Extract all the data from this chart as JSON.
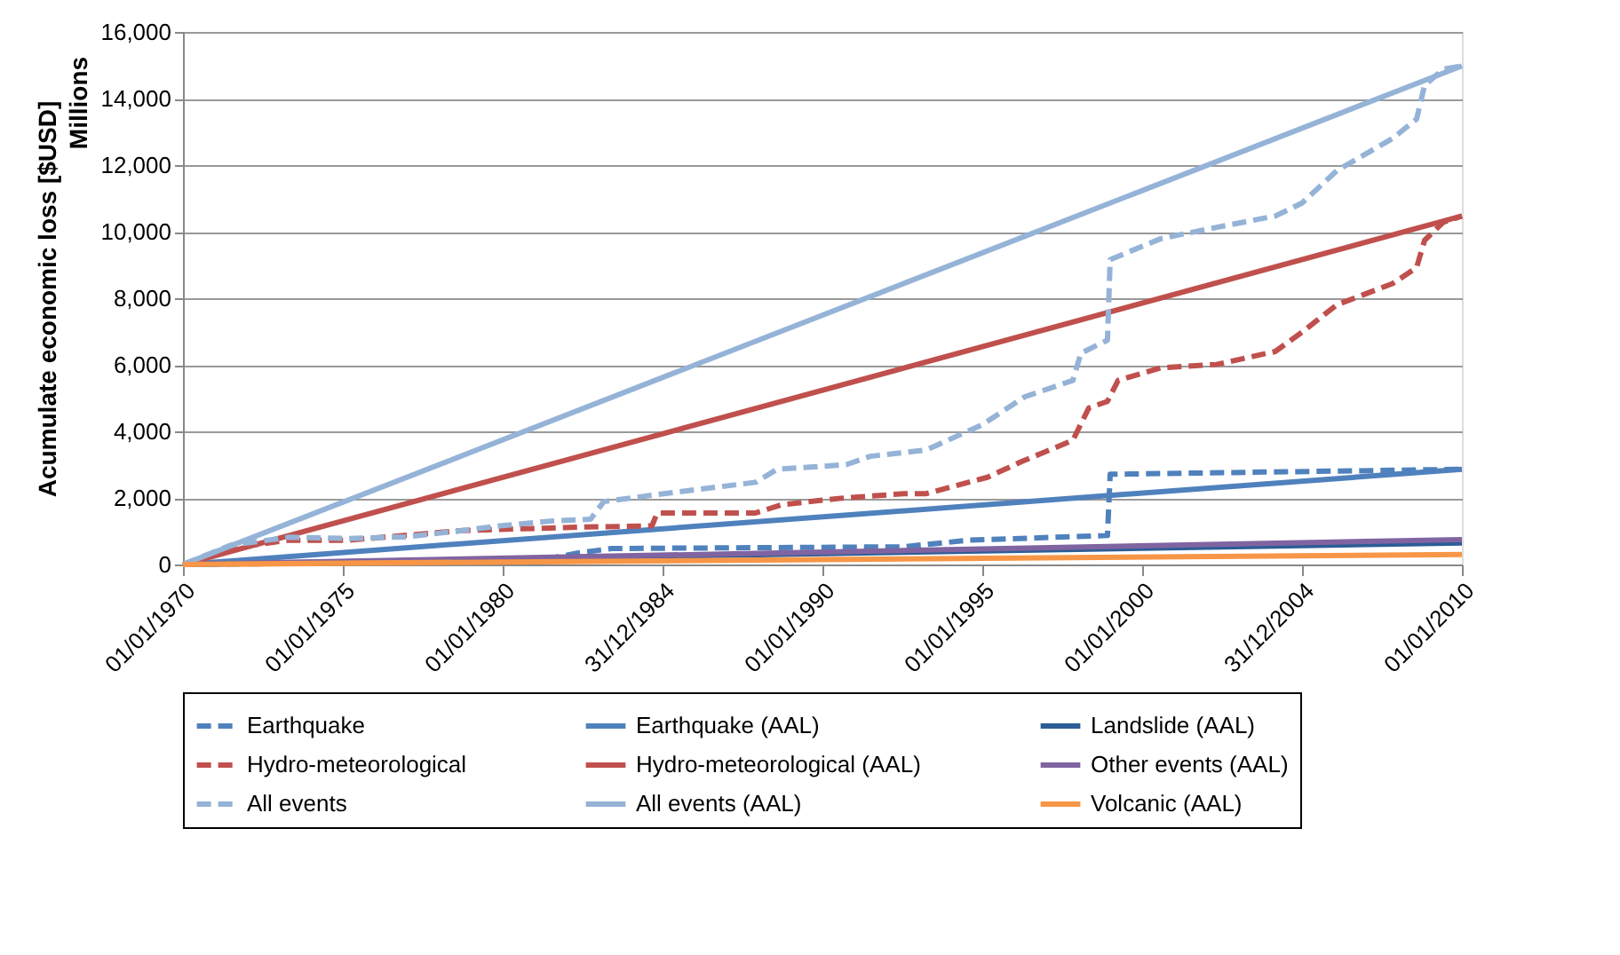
{
  "chart_data": {
    "type": "line",
    "ylabel": "Acumulate economic loss [$USD]",
    "annotations": [
      "Millions"
    ],
    "xlim": [
      "1970-01-01",
      "2010-01-01"
    ],
    "xticks": [
      {
        "value": "1970-01-01",
        "label": "01/01/1970"
      },
      {
        "value": "1975-01-01",
        "label": "01/01/1975"
      },
      {
        "value": "1980-01-01",
        "label": "01/01/1980"
      },
      {
        "value": "1984-12-31",
        "label": "31/12/1984"
      },
      {
        "value": "1990-01-01",
        "label": "01/01/1990"
      },
      {
        "value": "1995-01-01",
        "label": "01/01/1995"
      },
      {
        "value": "2000-01-01",
        "label": "01/01/2000"
      },
      {
        "value": "2004-12-31",
        "label": "31/12/2004"
      },
      {
        "value": "2010-01-01",
        "label": "01/01/2010"
      }
    ],
    "ylim": [
      0,
      16000
    ],
    "yticks": [
      0,
      {
        "value": 2000,
        "label": "2,000"
      },
      {
        "value": 4000,
        "label": "4,000"
      },
      {
        "value": 6000,
        "label": "6,000"
      },
      {
        "value": 8000,
        "label": "8,000"
      },
      {
        "value": 10000,
        "label": "10,000"
      },
      {
        "value": 12000,
        "label": "12,000"
      },
      {
        "value": 14000,
        "label": "14,000"
      },
      {
        "value": 16000,
        "label": "16,000"
      }
    ],
    "grid": "y",
    "legend": "bottom",
    "marker": "none",
    "series": [
      {
        "name": "Earthquake",
        "color": "#4f81bd",
        "line_style": "dashed",
        "x": [
          "1970-01",
          "1981-01",
          "1982-05",
          "1983-06",
          "1992-07",
          "1994-08",
          "1998-12",
          "1999-01",
          "2010-01"
        ],
        "values": [
          0,
          100,
          340,
          480,
          530,
          730,
          870,
          2710,
          2860
        ]
      },
      {
        "name": "Earthquake (AAL)",
        "color": "#4f81bd",
        "line_style": "solid",
        "x": [
          "1970-01",
          "2010-01"
        ],
        "values": [
          0,
          2860
        ]
      },
      {
        "name": "Landslide (AAL)",
        "color": "#2c5d96",
        "line_style": "solid",
        "x": [
          "1970-01",
          "2010-01"
        ],
        "values": [
          0,
          650
        ]
      },
      {
        "name": "Hydro-meteorological",
        "color": "#c0504d",
        "line_style": "dashed",
        "x": [
          "1970-01",
          "1971-07",
          "1973-05",
          "1975-03",
          "1978-10",
          "1982-05",
          "1984-09",
          "1984-11",
          "1987-12",
          "1988-10",
          "1990-08",
          "1992-08",
          "1993-04",
          "1995-03",
          "1996-04",
          "1997-11",
          "1998-05",
          "1998-12",
          "1999-04",
          "2000-08",
          "2002-05",
          "2004-03",
          "2005-01",
          "2006-02",
          "2007-11",
          "2008-08",
          "2008-11",
          "2009-06",
          "2010-01"
        ],
        "values": [
          0,
          500,
          730,
          730,
          1020,
          1120,
          1160,
          1550,
          1550,
          1800,
          1990,
          2130,
          2130,
          2620,
          3100,
          3730,
          4700,
          4900,
          5530,
          5910,
          6010,
          6400,
          6980,
          7800,
          8440,
          8920,
          9740,
          10280,
          10470
        ]
      },
      {
        "name": "Hydro-meteorological (AAL)",
        "color": "#c0504d",
        "line_style": "solid",
        "x": [
          "1970-01",
          "2010-01"
        ],
        "values": [
          0,
          10470
        ]
      },
      {
        "name": "Other events (AAL)",
        "color": "#8064a2",
        "line_style": "solid",
        "x": [
          "1970-01",
          "2010-01"
        ],
        "values": [
          0,
          750
        ]
      },
      {
        "name": "All events",
        "color": "#95b3d7",
        "line_style": "dashed",
        "x": [
          "1970-01",
          "1971-07",
          "1973-05",
          "1975-03",
          "1977-01",
          "1978-10",
          "1979-12",
          "1981-08",
          "1982-10",
          "1983-03",
          "1984-10",
          "1987-12",
          "1988-08",
          "1990-10",
          "1991-07",
          "1993-04",
          "1995-01",
          "1996-05",
          "1997-11",
          "1998-02",
          "1998-12",
          "1999-01",
          "2000-08",
          "2002-05",
          "2004-03",
          "2005-01",
          "2006-02",
          "2007-11",
          "2008-08",
          "2008-11",
          "2009-06",
          "2010-01"
        ],
        "values": [
          0,
          580,
          820,
          780,
          830,
          1020,
          1160,
          1310,
          1360,
          1890,
          2090,
          2470,
          2860,
          3000,
          3250,
          3440,
          4200,
          5040,
          5530,
          6350,
          6740,
          9160,
          9790,
          10130,
          10470,
          10860,
          11830,
          12800,
          13380,
          14400,
          14880,
          14980
        ]
      },
      {
        "name": "All events (AAL)",
        "color": "#95b3d7",
        "line_style": "solid",
        "x": [
          "1970-01",
          "2010-01"
        ],
        "values": [
          0,
          14980
        ]
      },
      {
        "name": "Volcanic (AAL)",
        "color": "#f79646",
        "line_style": "solid",
        "x": [
          "1970-01",
          "2010-01"
        ],
        "values": [
          0,
          300
        ]
      }
    ]
  }
}
